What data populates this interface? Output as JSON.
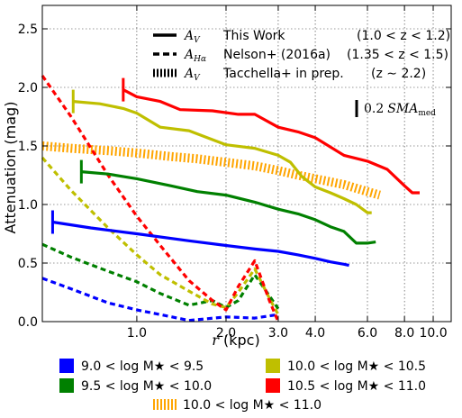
{
  "chart_data": {
    "type": "line",
    "title": "",
    "xlabel_italic": "r",
    "xlabel_unit": " (kpc)",
    "ylabel": "Attenuation (mag)",
    "xscale": "log",
    "xlim": [
      0.48,
      11.5
    ],
    "ylim": [
      0.0,
      2.7
    ],
    "grid": true,
    "xticks": [
      1.0,
      2.0,
      3.0,
      4.0,
      6.0,
      8.0,
      10.0
    ],
    "xtick_labels": [
      "1.0",
      "2.0",
      "3.0",
      "4.0",
      "6.0",
      "8.0",
      "10.0"
    ],
    "yticks": [
      0.0,
      0.5,
      1.0,
      1.5,
      2.0,
      2.5
    ],
    "ytick_labels": [
      "0.0",
      "0.5",
      "1.0",
      "1.5",
      "2.0",
      "2.5"
    ],
    "colors": {
      "blue": "#0000ff",
      "green": "#008000",
      "olive": "#bfbf00",
      "red": "#ff0000",
      "orange": "#ffa500"
    },
    "series": [
      {
        "style": "solid",
        "color": "blue",
        "x": [
          0.52,
          0.7,
          1.0,
          1.5,
          2.0,
          2.5,
          3.0,
          3.5,
          4.0,
          4.5,
          5.0,
          5.2
        ],
        "y": [
          0.85,
          0.8,
          0.75,
          0.69,
          0.65,
          0.62,
          0.6,
          0.57,
          0.54,
          0.51,
          0.49,
          0.48
        ]
      },
      {
        "style": "solid",
        "color": "green",
        "x": [
          0.65,
          0.8,
          1.0,
          1.3,
          1.6,
          2.0,
          2.5,
          3.0,
          3.5,
          4.0,
          4.5,
          5.0,
          5.5,
          6.0,
          6.4
        ],
        "y": [
          1.28,
          1.26,
          1.22,
          1.16,
          1.11,
          1.08,
          1.02,
          0.96,
          0.92,
          0.87,
          0.81,
          0.77,
          0.67,
          0.67,
          0.68
        ]
      },
      {
        "style": "solid",
        "color": "olive",
        "x": [
          0.61,
          0.75,
          0.9,
          1.0,
          1.2,
          1.5,
          2.0,
          2.5,
          3.0,
          3.3,
          3.6,
          4.0,
          4.5,
          5.0,
          5.5,
          6.0,
          6.2
        ],
        "y": [
          1.88,
          1.86,
          1.82,
          1.78,
          1.66,
          1.63,
          1.51,
          1.48,
          1.42,
          1.36,
          1.24,
          1.15,
          1.1,
          1.05,
          1.0,
          0.93,
          0.93
        ]
      },
      {
        "style": "solid",
        "color": "red",
        "x": [
          0.9,
          1.0,
          1.2,
          1.4,
          1.8,
          2.2,
          2.5,
          3.0,
          3.5,
          4.0,
          5.0,
          6.0,
          7.0,
          8.0,
          8.5,
          9.0
        ],
        "y": [
          1.98,
          1.92,
          1.88,
          1.81,
          1.8,
          1.77,
          1.77,
          1.66,
          1.62,
          1.57,
          1.42,
          1.37,
          1.3,
          1.16,
          1.1,
          1.1
        ]
      },
      {
        "style": "dashed",
        "color": "blue",
        "x": [
          0.48,
          0.6,
          0.8,
          1.0,
          1.2,
          1.5,
          2.0,
          2.5,
          3.0
        ],
        "y": [
          0.37,
          0.28,
          0.16,
          0.1,
          0.06,
          0.01,
          0.04,
          0.03,
          0.06
        ]
      },
      {
        "style": "dashed",
        "color": "green",
        "x": [
          0.48,
          0.6,
          0.8,
          1.0,
          1.2,
          1.5,
          1.8,
          2.0,
          2.2,
          2.5,
          2.8,
          3.0
        ],
        "y": [
          0.66,
          0.55,
          0.43,
          0.34,
          0.24,
          0.14,
          0.18,
          0.12,
          0.18,
          0.4,
          0.22,
          0.11
        ]
      },
      {
        "style": "dashed",
        "color": "olive",
        "x": [
          0.48,
          0.6,
          0.8,
          1.0,
          1.2,
          1.5,
          1.8,
          2.0,
          2.2,
          2.5,
          2.8,
          3.0
        ],
        "y": [
          1.4,
          1.12,
          0.8,
          0.57,
          0.4,
          0.26,
          0.15,
          0.12,
          0.25,
          0.45,
          0.2,
          0.06
        ]
      },
      {
        "style": "dashed",
        "color": "red",
        "x": [
          0.48,
          0.6,
          0.8,
          1.0,
          1.2,
          1.5,
          1.8,
          2.0,
          2.2,
          2.5,
          2.8,
          3.0
        ],
        "y": [
          2.1,
          1.75,
          1.25,
          0.9,
          0.65,
          0.35,
          0.18,
          0.1,
          0.3,
          0.52,
          0.18,
          0.0
        ]
      },
      {
        "style": "hatched",
        "color": "orange",
        "x": [
          0.48,
          0.6,
          0.8,
          1.0,
          1.3,
          1.6,
          2.0,
          2.5,
          3.0,
          3.5,
          4.0,
          5.0,
          6.0,
          6.6
        ],
        "y": [
          1.5,
          1.48,
          1.46,
          1.44,
          1.41,
          1.39,
          1.36,
          1.33,
          1.29,
          1.25,
          1.22,
          1.17,
          1.11,
          1.08
        ]
      }
    ],
    "markers": [
      {
        "color": "blue",
        "x": 0.52,
        "y0": 0.75,
        "y1": 0.95
      },
      {
        "color": "green",
        "x": 0.65,
        "y0": 1.18,
        "y1": 1.38
      },
      {
        "color": "olive",
        "x": 0.61,
        "y0": 1.78,
        "y1": 1.98
      },
      {
        "color": "red",
        "x": 0.9,
        "y0": 1.88,
        "y1": 2.08
      }
    ],
    "scale_bar": {
      "label": "0.2",
      "label_math": "SMA",
      "label_sub": "med"
    },
    "legend_top": [
      {
        "style": "solid",
        "symbol": "A",
        "symbol_sub": "V",
        "text": "This Work",
        "range": "(1.0 < z < 1.2)"
      },
      {
        "style": "dashed",
        "symbol": "A",
        "symbol_sub": "Hα",
        "text": "Nelson+ (2016a)",
        "range": "(1.35 < z < 1.5)"
      },
      {
        "style": "hatched",
        "symbol": "A",
        "symbol_sub": "V",
        "text": "Tacchella+ in prep.",
        "range": "(z ∼ 2.2)"
      }
    ],
    "legend_bottom": [
      {
        "color": "blue",
        "label": "9.0 < log M★ < 9.5"
      },
      {
        "color": "olive",
        "label": "10.0 < log M★ < 10.5"
      },
      {
        "color": "green",
        "label": "9.5 < log M★ < 10.0"
      },
      {
        "color": "red",
        "label": "10.5 < log M★ < 11.0"
      },
      {
        "color": "orange",
        "label": "10.0 < log M★ < 11.0"
      }
    ]
  }
}
